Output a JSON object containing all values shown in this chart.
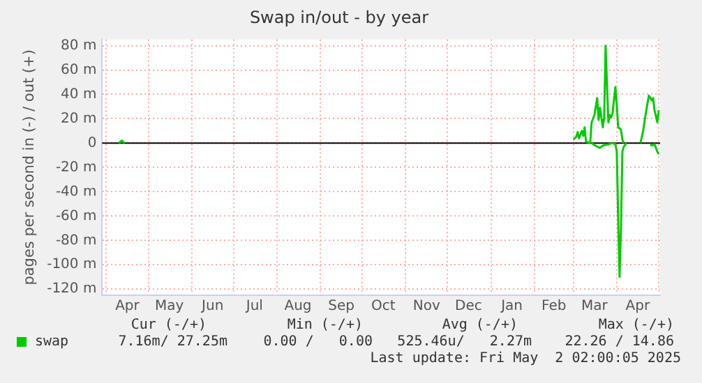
{
  "chart_data": {
    "type": "line",
    "title": "Swap in/out - by year",
    "ylabel": "pages per second in (-) / out (+)",
    "series": [
      {
        "name": "swap",
        "color": "#00cc00",
        "x": [
          "2025-03-01",
          "2025-03-03",
          "2025-03-04",
          "2025-03-05",
          "2025-03-07",
          "2025-03-08",
          "2025-03-09",
          "2025-03-10",
          "2025-03-13",
          "2025-03-14",
          "2025-03-16",
          "2025-03-18",
          "2025-03-19",
          "2025-03-20",
          "2025-03-22",
          "2025-03-23",
          "2025-03-24",
          "2025-03-26",
          "2025-03-27",
          "2025-03-28",
          "2025-03-29",
          "2025-03-31",
          "2025-04-01",
          "2025-04-02",
          "2025-04-04",
          "2025-04-05",
          "2025-04-06",
          "2025-04-12",
          "2025-04-18",
          "2025-04-20",
          "2025-04-21",
          "2025-04-23",
          "2025-04-24",
          "2025-04-26",
          "2025-04-27",
          "2025-04-28",
          "2025-04-30",
          "2025-05-01"
        ],
        "values": [
          3,
          5,
          9,
          4,
          10,
          6,
          13,
          1,
          0,
          17,
          23,
          37,
          19,
          29,
          13,
          21,
          80,
          17,
          23,
          21,
          25,
          46,
          31,
          13,
          11,
          3,
          0,
          null,
          0,
          11,
          19,
          33,
          39,
          35,
          37,
          27,
          17,
          27
        ]
      },
      {
        "color": "#00cc00",
        "x": [
          "2025-03-14",
          "2025-03-18",
          "2025-03-20",
          "2025-03-22",
          "2025-03-26",
          "2025-03-29",
          "2025-03-31",
          "2025-04-01",
          "2025-04-02",
          "2025-04-03",
          "2025-04-04",
          "2025-04-05",
          "2025-04-06",
          "2025-04-08",
          "2025-04-16",
          "2025-04-25",
          "2025-04-26",
          "2025-04-28",
          "2025-04-30",
          "2025-05-01"
        ],
        "values": [
          0,
          -3,
          -4,
          -2,
          -1,
          0,
          -1,
          -7,
          -62,
          -110,
          -70,
          -7,
          -3,
          0,
          null,
          -1,
          -2,
          -1,
          -7,
          -9
        ]
      },
      {
        "color": "#00cc00",
        "x": [
          "2024-04-10",
          "2024-04-12",
          "2024-04-14"
        ],
        "values": [
          0,
          2,
          0
        ]
      }
    ],
    "xlim": [
      "2024-03-29",
      "2025-05-02"
    ],
    "xticks": [
      {
        "value": "2024-04-01",
        "label": null
      },
      {
        "value": "2024-04-16",
        "label": "Apr"
      },
      {
        "value": "2024-05-01",
        "label": null
      },
      {
        "value": "2024-05-16",
        "label": "May"
      },
      {
        "value": "2024-06-01",
        "label": null
      },
      {
        "value": "2024-06-16",
        "label": "Jun"
      },
      {
        "value": "2024-07-01",
        "label": null
      },
      {
        "value": "2024-07-16",
        "label": "Jul"
      },
      {
        "value": "2024-08-01",
        "label": null
      },
      {
        "value": "2024-08-16",
        "label": "Aug"
      },
      {
        "value": "2024-09-01",
        "label": null
      },
      {
        "value": "2024-09-16",
        "label": "Sep"
      },
      {
        "value": "2024-10-01",
        "label": null
      },
      {
        "value": "2024-10-16",
        "label": "Oct"
      },
      {
        "value": "2024-11-01",
        "label": null
      },
      {
        "value": "2024-11-16",
        "label": "Nov"
      },
      {
        "value": "2024-12-01",
        "label": null
      },
      {
        "value": "2024-12-16",
        "label": "Dec"
      },
      {
        "value": "2025-01-01",
        "label": null
      },
      {
        "value": "2025-01-16",
        "label": "Jan"
      },
      {
        "value": "2025-02-01",
        "label": null
      },
      {
        "value": "2025-02-15",
        "label": "Feb"
      },
      {
        "value": "2025-03-01",
        "label": null
      },
      {
        "value": "2025-03-16",
        "label": "Mar"
      },
      {
        "value": "2025-04-01",
        "label": null
      },
      {
        "value": "2025-04-16",
        "label": "Apr"
      },
      {
        "value": "2025-05-01",
        "label": null
      }
    ],
    "ylim": [
      -125,
      85
    ],
    "yticks": [
      {
        "value": 80,
        "label": "80 m"
      },
      {
        "value": 60,
        "label": "60 m"
      },
      {
        "value": 40,
        "label": "40 m"
      },
      {
        "value": 20,
        "label": "20 m"
      },
      0,
      {
        "value": -20,
        "label": "-20 m"
      },
      {
        "value": -40,
        "label": "-40 m"
      },
      {
        "value": -60,
        "label": "-60 m"
      },
      {
        "value": -80,
        "label": "-80 m"
      },
      {
        "value": -100,
        "label": "-100 m"
      },
      {
        "value": -120,
        "label": "-120 m"
      }
    ],
    "grid": true,
    "ref_lines": [
      {
        "axis": "y",
        "value": 0,
        "color": "#000000"
      }
    ],
    "legend": "bottom",
    "annotations": [
      "Cur (-/+)",
      "Min (-/+)",
      "Avg (-/+)",
      "Max (-/+)",
      "7.16m/ 27.25m",
      "0.00 /   0.00",
      "525.46u/   2.27m",
      "22.26 / 14.86",
      "Last update: Fri May  2 02:00:05 2025"
    ]
  }
}
